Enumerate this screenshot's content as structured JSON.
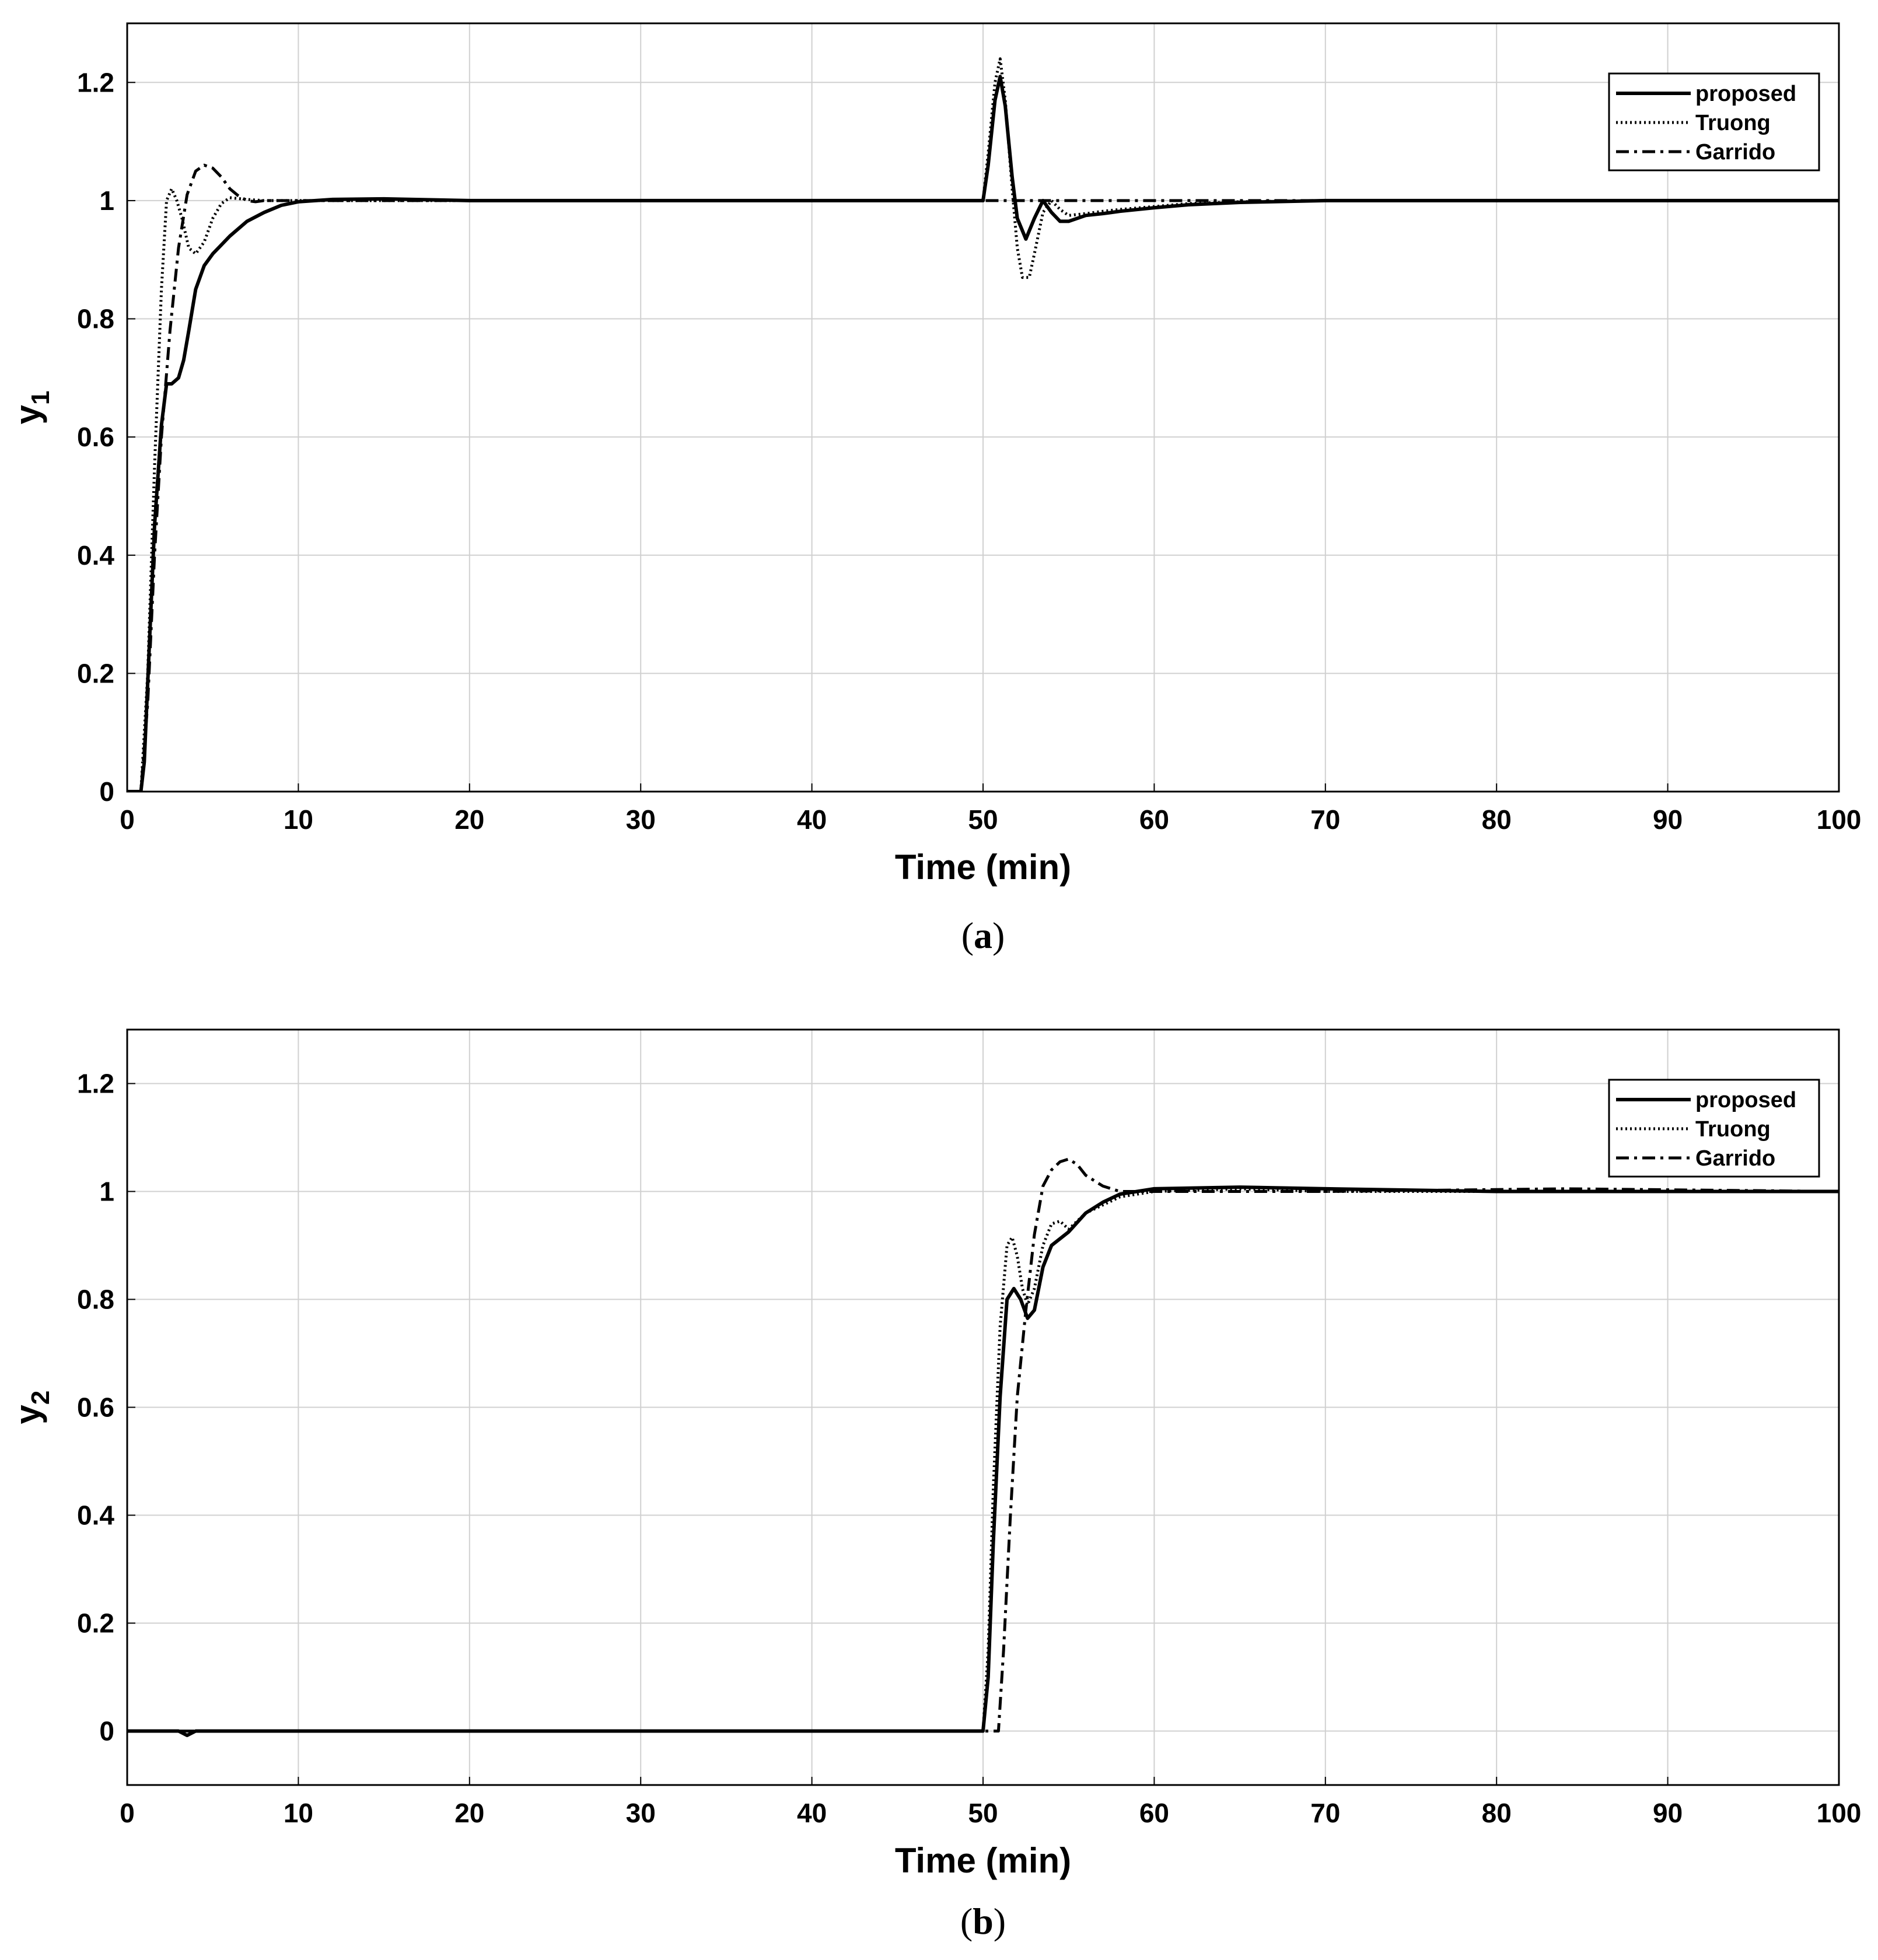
{
  "chart_data": [
    {
      "type": "line",
      "panel_id": "a",
      "caption_open": "(",
      "caption_letter": "a",
      "caption_close": ")",
      "xlabel": "Time (min)",
      "ylabel_main": "y",
      "ylabel_sub": "1",
      "xlim": [
        0,
        100
      ],
      "ylim": [
        0,
        1.3
      ],
      "xticks": [
        0,
        10,
        20,
        30,
        40,
        50,
        60,
        70,
        80,
        90,
        100
      ],
      "yticks": [
        0,
        0.2,
        0.4,
        0.6,
        0.8,
        1,
        1.2
      ],
      "ytick_labels": [
        "0",
        "0.2",
        "0.4",
        "0.6",
        "0.8",
        "1",
        "1.2"
      ],
      "grid": true,
      "legend_position": "top-right",
      "series": [
        {
          "name": "proposed",
          "style": "solid",
          "x": [
            0,
            0.8,
            1.0,
            1.3,
            1.6,
            2.0,
            2.3,
            2.6,
            3.0,
            3.3,
            3.6,
            4.0,
            4.5,
            5.0,
            6.0,
            7.0,
            8.0,
            9.0,
            10.0,
            11.0,
            12.0,
            15.0,
            20.0,
            30.0,
            40.0,
            50.0,
            50.3,
            50.7,
            51.0,
            51.3,
            51.7,
            52.0,
            52.5,
            53.0,
            53.5,
            54.0,
            54.5,
            55.0,
            56.0,
            57.0,
            58.0,
            60.0,
            62.0,
            65.0,
            70.0,
            80.0,
            100.0
          ],
          "y": [
            0,
            0,
            0.05,
            0.25,
            0.45,
            0.62,
            0.69,
            0.69,
            0.7,
            0.73,
            0.78,
            0.85,
            0.89,
            0.91,
            0.94,
            0.965,
            0.98,
            0.992,
            0.998,
            1.0,
            1.002,
            1.003,
            1.0,
            1.0,
            1.0,
            1.0,
            1.06,
            1.17,
            1.21,
            1.16,
            1.04,
            0.97,
            0.935,
            0.97,
            1.0,
            0.98,
            0.965,
            0.965,
            0.975,
            0.978,
            0.982,
            0.988,
            0.993,
            0.997,
            1.0,
            1.0,
            1.0
          ]
        },
        {
          "name": "Truong",
          "style": "dotted",
          "x": [
            0,
            0.8,
            1.2,
            1.6,
            2.0,
            2.3,
            2.6,
            2.9,
            3.2,
            3.6,
            4.0,
            4.5,
            5.0,
            5.5,
            6.0,
            7.0,
            8.0,
            10.0,
            20.0,
            50.0,
            50.3,
            50.7,
            51.0,
            51.3,
            51.7,
            52.0,
            52.3,
            52.7,
            53.0,
            53.5,
            54.0,
            54.5,
            55.0,
            56.0,
            57.0,
            58.0,
            60.0,
            62.0,
            65.0,
            70.0,
            100.0
          ],
          "y": [
            0,
            0,
            0.2,
            0.55,
            0.85,
            1.0,
            1.02,
            1.0,
            0.97,
            0.92,
            0.91,
            0.93,
            0.97,
            0.995,
            1.005,
            1.002,
            1.0,
            1.0,
            1.0,
            1.0,
            1.08,
            1.2,
            1.24,
            1.17,
            1.02,
            0.92,
            0.87,
            0.87,
            0.91,
            0.98,
            1.0,
            0.985,
            0.975,
            0.978,
            0.982,
            0.985,
            0.99,
            0.995,
            0.998,
            1.0,
            1.0
          ]
        },
        {
          "name": "Garrido",
          "style": "dashdot",
          "x": [
            0,
            0.8,
            1.2,
            1.6,
            2.0,
            2.5,
            3.0,
            3.5,
            4.0,
            4.5,
            5.0,
            5.5,
            6.0,
            6.5,
            7.0,
            7.5,
            8.0,
            9.0,
            10.0,
            20.0,
            50.0,
            100.0
          ],
          "y": [
            0,
            0,
            0.15,
            0.4,
            0.6,
            0.78,
            0.92,
            1.01,
            1.05,
            1.06,
            1.055,
            1.04,
            1.02,
            1.008,
            1.0,
            0.998,
            1.0,
            1.0,
            1.0,
            1.0,
            1.0,
            1.0
          ]
        }
      ]
    },
    {
      "type": "line",
      "panel_id": "b",
      "caption_open": "(",
      "caption_letter": "b",
      "caption_close": ")",
      "xlabel": "Time (min)",
      "ylabel_main": "y",
      "ylabel_sub": "2",
      "xlim": [
        0,
        100
      ],
      "ylim": [
        -0.1,
        1.3
      ],
      "xticks": [
        0,
        10,
        20,
        30,
        40,
        50,
        60,
        70,
        80,
        90,
        100
      ],
      "yticks": [
        0,
        0.2,
        0.4,
        0.6,
        0.8,
        1,
        1.2
      ],
      "ytick_labels": [
        "0",
        "0.2",
        "0.4",
        "0.6",
        "0.8",
        "1",
        "1.2"
      ],
      "grid": true,
      "legend_position": "top-right",
      "series": [
        {
          "name": "proposed",
          "style": "solid",
          "x": [
            0,
            3.0,
            3.5,
            4.0,
            10.0,
            50.0,
            50.3,
            50.6,
            51.0,
            51.4,
            51.8,
            52.2,
            52.6,
            53.0,
            53.5,
            54.0,
            55.0,
            56.0,
            57.0,
            58.0,
            60.0,
            65.0,
            70.0,
            80.0,
            90.0,
            100.0
          ],
          "y": [
            0,
            0,
            -0.008,
            0,
            0,
            0,
            0.1,
            0.35,
            0.62,
            0.8,
            0.82,
            0.8,
            0.765,
            0.78,
            0.86,
            0.9,
            0.925,
            0.96,
            0.98,
            0.995,
            1.005,
            1.008,
            1.005,
            1.0,
            1.0,
            1.0
          ]
        },
        {
          "name": "Truong",
          "style": "dotted",
          "x": [
            0,
            50.0,
            50.3,
            50.6,
            51.0,
            51.4,
            51.7,
            52.0,
            52.3,
            52.6,
            53.0,
            53.5,
            54.0,
            54.5,
            55.0,
            56.0,
            58.0,
            60.0,
            65.0,
            70.0,
            80.0,
            100.0
          ],
          "y": [
            0,
            0,
            0.15,
            0.45,
            0.75,
            0.9,
            0.915,
            0.88,
            0.82,
            0.79,
            0.82,
            0.9,
            0.94,
            0.945,
            0.93,
            0.96,
            0.99,
            1.0,
            1.005,
            1.0,
            1.0,
            1.0
          ]
        },
        {
          "name": "Garrido",
          "style": "dashdot",
          "x": [
            0,
            50.9,
            51.2,
            51.6,
            52.0,
            52.5,
            53.0,
            53.5,
            54.0,
            54.5,
            55.0,
            55.5,
            56.0,
            57.0,
            58.0,
            60.0,
            70.0,
            84.0,
            100.0
          ],
          "y": [
            0,
            0,
            0.15,
            0.4,
            0.62,
            0.78,
            0.92,
            1.01,
            1.04,
            1.055,
            1.06,
            1.05,
            1.03,
            1.01,
            1.0,
            1.0,
            1.0,
            1.005,
            1.0
          ]
        }
      ]
    }
  ]
}
